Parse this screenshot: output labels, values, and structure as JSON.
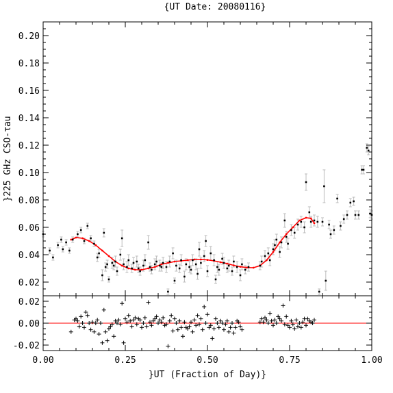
{
  "chart_data": [
    {
      "type": "scatter",
      "title": "{UT Date: 20080116}",
      "xlabel": "",
      "ylabel": "}225 GHz CSO-τau",
      "xlim": [
        0,
        1
      ],
      "ylim": [
        0.01,
        0.21
      ],
      "x_ticks": [
        0,
        0.25,
        0.5,
        0.75,
        1
      ],
      "y_ticks": [
        0.02,
        0.04,
        0.06,
        0.08,
        0.1,
        0.12,
        0.14,
        0.16,
        0.18,
        0.2
      ],
      "y_tick_labels": [
        "0.02",
        "0.04",
        "0.06",
        "0.08",
        "0.10",
        "0.12",
        "0.14",
        "0.16",
        "0.18",
        "0.20"
      ],
      "points": [
        [
          0.0,
          0.055,
          0.002
        ],
        [
          0.02,
          0.043,
          0.002
        ],
        [
          0.03,
          0.038,
          0.002
        ],
        [
          0.045,
          0.047,
          0.002
        ],
        [
          0.055,
          0.051,
          0.002
        ],
        [
          0.06,
          0.044,
          0.002
        ],
        [
          0.07,
          0.049,
          0.002
        ],
        [
          0.08,
          0.043,
          0.002
        ],
        [
          0.09,
          0.051,
          0.002
        ],
        [
          0.105,
          0.055,
          0.002
        ],
        [
          0.115,
          0.058,
          0.002
        ],
        [
          0.125,
          0.05,
          0.002
        ],
        [
          0.135,
          0.061,
          0.002
        ],
        [
          0.145,
          0.052,
          0.002
        ],
        [
          0.155,
          0.048,
          0.002
        ],
        [
          0.165,
          0.038,
          0.003
        ],
        [
          0.17,
          0.041,
          0.003
        ],
        [
          0.18,
          0.025,
          0.004
        ],
        [
          0.185,
          0.056,
          0.003
        ],
        [
          0.19,
          0.031,
          0.003
        ],
        [
          0.195,
          0.033,
          0.003
        ],
        [
          0.2,
          0.022,
          0.002
        ],
        [
          0.21,
          0.034,
          0.004
        ],
        [
          0.215,
          0.032,
          0.003
        ],
        [
          0.22,
          0.035,
          0.004
        ],
        [
          0.225,
          0.028,
          0.003
        ],
        [
          0.235,
          0.04,
          0.004
        ],
        [
          0.24,
          0.052,
          0.006
        ],
        [
          0.245,
          0.033,
          0.004
        ],
        [
          0.255,
          0.031,
          0.004
        ],
        [
          0.26,
          0.036,
          0.004
        ],
        [
          0.27,
          0.03,
          0.003
        ],
        [
          0.275,
          0.034,
          0.004
        ],
        [
          0.285,
          0.035,
          0.004
        ],
        [
          0.29,
          0.03,
          0.003
        ],
        [
          0.295,
          0.028,
          0.003
        ],
        [
          0.305,
          0.032,
          0.004
        ],
        [
          0.31,
          0.036,
          0.004
        ],
        [
          0.32,
          0.049,
          0.005
        ],
        [
          0.325,
          0.031,
          0.003
        ],
        [
          0.33,
          0.029,
          0.003
        ],
        [
          0.34,
          0.033,
          0.004
        ],
        [
          0.345,
          0.035,
          0.004
        ],
        [
          0.355,
          0.032,
          0.004
        ],
        [
          0.36,
          0.031,
          0.003
        ],
        [
          0.365,
          0.034,
          0.004
        ],
        [
          0.375,
          0.031,
          0.004
        ],
        [
          0.38,
          0.013,
          0.002
        ],
        [
          0.385,
          0.035,
          0.004
        ],
        [
          0.395,
          0.041,
          0.004
        ],
        [
          0.4,
          0.021,
          0.002
        ],
        [
          0.405,
          0.032,
          0.004
        ],
        [
          0.415,
          0.03,
          0.003
        ],
        [
          0.42,
          0.036,
          0.004
        ],
        [
          0.43,
          0.024,
          0.004
        ],
        [
          0.435,
          0.033,
          0.004
        ],
        [
          0.445,
          0.031,
          0.004
        ],
        [
          0.45,
          0.029,
          0.003
        ],
        [
          0.455,
          0.036,
          0.004
        ],
        [
          0.465,
          0.033,
          0.004
        ],
        [
          0.47,
          0.026,
          0.004
        ],
        [
          0.475,
          0.044,
          0.005
        ],
        [
          0.48,
          0.034,
          0.004
        ],
        [
          0.49,
          0.039,
          0.004
        ],
        [
          0.495,
          0.05,
          0.004
        ],
        [
          0.5,
          0.028,
          0.004
        ],
        [
          0.51,
          0.041,
          0.005
        ],
        [
          0.52,
          0.036,
          0.004
        ],
        [
          0.525,
          0.022,
          0.003
        ],
        [
          0.53,
          0.031,
          0.004
        ],
        [
          0.535,
          0.029,
          0.004
        ],
        [
          0.545,
          0.037,
          0.004
        ],
        [
          0.55,
          0.034,
          0.004
        ],
        [
          0.56,
          0.03,
          0.003
        ],
        [
          0.565,
          0.032,
          0.004
        ],
        [
          0.575,
          0.028,
          0.003
        ],
        [
          0.58,
          0.035,
          0.004
        ],
        [
          0.59,
          0.031,
          0.004
        ],
        [
          0.6,
          0.025,
          0.004
        ],
        [
          0.605,
          0.033,
          0.004
        ],
        [
          0.615,
          0.029,
          0.003
        ],
        [
          0.625,
          0.031,
          0.003
        ],
        [
          0.66,
          0.032,
          0.003
        ],
        [
          0.665,
          0.035,
          0.004
        ],
        [
          0.675,
          0.039,
          0.004
        ],
        [
          0.685,
          0.041,
          0.004
        ],
        [
          0.69,
          0.036,
          0.004
        ],
        [
          0.7,
          0.044,
          0.004
        ],
        [
          0.705,
          0.047,
          0.004
        ],
        [
          0.71,
          0.051,
          0.004
        ],
        [
          0.72,
          0.042,
          0.004
        ],
        [
          0.725,
          0.049,
          0.004
        ],
        [
          0.735,
          0.065,
          0.005
        ],
        [
          0.74,
          0.053,
          0.004
        ],
        [
          0.745,
          0.048,
          0.004
        ],
        [
          0.755,
          0.058,
          0.004
        ],
        [
          0.765,
          0.056,
          0.004
        ],
        [
          0.775,
          0.062,
          0.004
        ],
        [
          0.785,
          0.064,
          0.004
        ],
        [
          0.795,
          0.06,
          0.004
        ],
        [
          0.8,
          0.093,
          0.006
        ],
        [
          0.81,
          0.071,
          0.004
        ],
        [
          0.815,
          0.064,
          0.004
        ],
        [
          0.825,
          0.065,
          0.004
        ],
        [
          0.835,
          0.064,
          0.004
        ],
        [
          0.84,
          0.013,
          0.002
        ],
        [
          0.85,
          0.064,
          0.003
        ],
        [
          0.855,
          0.09,
          0.012
        ],
        [
          0.86,
          0.021,
          0.007
        ],
        [
          0.87,
          0.062,
          0.003
        ],
        [
          0.875,
          0.055,
          0.003
        ],
        [
          0.885,
          0.058,
          0.003
        ],
        [
          0.895,
          0.081,
          0.003
        ],
        [
          0.905,
          0.061,
          0.003
        ],
        [
          0.915,
          0.066,
          0.003
        ],
        [
          0.925,
          0.069,
          0.003
        ],
        [
          0.935,
          0.078,
          0.003
        ],
        [
          0.945,
          0.079,
          0.003
        ],
        [
          0.95,
          0.069,
          0.003
        ],
        [
          0.96,
          0.069,
          0.003
        ],
        [
          0.97,
          0.102,
          0.003
        ],
        [
          0.975,
          0.102,
          0.003
        ],
        [
          0.985,
          0.118,
          0.003
        ],
        [
          0.99,
          0.116,
          0.003
        ],
        [
          0.995,
          0.07,
          0.003
        ],
        [
          1.0,
          0.069,
          0.003
        ]
      ],
      "fit": {
        "x": [
          0.085,
          0.1,
          0.12,
          0.14,
          0.16,
          0.18,
          0.2,
          0.22,
          0.24,
          0.26,
          0.28,
          0.3,
          0.32,
          0.34,
          0.36,
          0.38,
          0.4,
          0.42,
          0.44,
          0.46,
          0.48,
          0.5,
          0.52,
          0.54,
          0.56,
          0.58,
          0.6,
          0.62,
          0.64,
          0.66,
          0.68,
          0.7,
          0.72,
          0.74,
          0.76,
          0.78,
          0.8,
          0.815,
          0.825
        ],
        "y": [
          0.051,
          0.0525,
          0.052,
          0.05,
          0.047,
          0.043,
          0.039,
          0.035,
          0.032,
          0.03,
          0.029,
          0.029,
          0.03,
          0.031,
          0.033,
          0.034,
          0.035,
          0.0355,
          0.036,
          0.0365,
          0.0365,
          0.0362,
          0.0355,
          0.0345,
          0.0335,
          0.0322,
          0.0312,
          0.0306,
          0.0305,
          0.032,
          0.036,
          0.042,
          0.049,
          0.055,
          0.06,
          0.065,
          0.067,
          0.0665,
          0.063
        ],
        "color": "#ff0000"
      },
      "point_color": "#000000",
      "errorbar_color": "#bbbbbb"
    },
    {
      "type": "scatter",
      "xlabel": "}UT (Fraction of Day)}",
      "ylabel": "",
      "xlim": [
        0,
        1
      ],
      "ylim": [
        -0.025,
        0.025
      ],
      "x_ticks": [
        0,
        0.25,
        0.5,
        0.75,
        1
      ],
      "x_tick_labels": [
        "0.00",
        "0.25",
        "0.50",
        "0.75",
        "1.00"
      ],
      "y_ticks": [
        -0.02,
        0,
        0.02
      ],
      "y_tick_labels": [
        "-0.02",
        "0.00",
        "0.02"
      ],
      "zero_line_color": "#ff0000",
      "residuals": [
        [
          0.085,
          -0.008
        ],
        [
          0.095,
          0.003
        ],
        [
          0.1,
          0.004
        ],
        [
          0.105,
          0.002
        ],
        [
          0.11,
          -0.003
        ],
        [
          0.115,
          0.006
        ],
        [
          0.12,
          0.0
        ],
        [
          0.125,
          -0.004
        ],
        [
          0.13,
          0.01
        ],
        [
          0.135,
          0.007
        ],
        [
          0.14,
          0.0
        ],
        [
          0.145,
          -0.006
        ],
        [
          0.15,
          0.001
        ],
        [
          0.155,
          -0.008
        ],
        [
          0.16,
          0.0
        ],
        [
          0.165,
          0.003
        ],
        [
          0.17,
          -0.01
        ],
        [
          0.175,
          0.0
        ],
        [
          0.18,
          -0.018
        ],
        [
          0.185,
          0.012
        ],
        [
          0.19,
          -0.008
        ],
        [
          0.195,
          -0.016
        ],
        [
          0.2,
          -0.005
        ],
        [
          0.205,
          -0.003
        ],
        [
          0.21,
          -0.001
        ],
        [
          0.215,
          -0.012
        ],
        [
          0.22,
          0.002
        ],
        [
          0.225,
          0.0
        ],
        [
          0.23,
          0.003
        ],
        [
          0.235,
          -0.001
        ],
        [
          0.24,
          0.018
        ],
        [
          0.245,
          -0.018
        ],
        [
          0.25,
          0.004
        ],
        [
          0.255,
          0.001
        ],
        [
          0.26,
          0.007
        ],
        [
          0.265,
          0.002
        ],
        [
          0.27,
          -0.003
        ],
        [
          0.275,
          0.003
        ],
        [
          0.28,
          0.005
        ],
        [
          0.285,
          -0.001
        ],
        [
          0.29,
          0.004
        ],
        [
          0.295,
          0.003
        ],
        [
          0.3,
          -0.004
        ],
        [
          0.305,
          0.0
        ],
        [
          0.31,
          0.005
        ],
        [
          0.315,
          -0.003
        ],
        [
          0.32,
          0.019
        ],
        [
          0.325,
          0.001
        ],
        [
          0.33,
          -0.002
        ],
        [
          0.335,
          0.002
        ],
        [
          0.34,
          0.004
        ],
        [
          0.345,
          0.006
        ],
        [
          0.35,
          0.0
        ],
        [
          0.355,
          0.003
        ],
        [
          0.36,
          0.001
        ],
        [
          0.365,
          0.005
        ],
        [
          0.37,
          -0.002
        ],
        [
          0.375,
          -0.001
        ],
        [
          0.38,
          -0.021
        ],
        [
          0.385,
          0.002
        ],
        [
          0.39,
          0.007
        ],
        [
          0.395,
          -0.007
        ],
        [
          0.4,
          0.004
        ],
        [
          0.405,
          0.0
        ],
        [
          0.41,
          -0.006
        ],
        [
          0.415,
          0.002
        ],
        [
          0.42,
          -0.004
        ],
        [
          0.425,
          -0.012
        ],
        [
          0.43,
          0.001
        ],
        [
          0.435,
          -0.004
        ],
        [
          0.44,
          -0.005
        ],
        [
          0.445,
          -0.003
        ],
        [
          0.45,
          0.001
        ],
        [
          0.455,
          -0.008
        ],
        [
          0.46,
          0.003
        ],
        [
          0.465,
          -0.002
        ],
        [
          0.47,
          0.007
        ],
        [
          0.475,
          -0.001
        ],
        [
          0.48,
          0.004
        ],
        [
          0.485,
          -0.006
        ],
        [
          0.49,
          0.015
        ],
        [
          0.495,
          0.0
        ],
        [
          0.5,
          0.008
        ],
        [
          0.505,
          -0.004
        ],
        [
          0.51,
          -0.002
        ],
        [
          0.515,
          -0.014
        ],
        [
          0.52,
          -0.005
        ],
        [
          0.525,
          0.004
        ],
        [
          0.53,
          0.0
        ],
        [
          0.535,
          -0.004
        ],
        [
          0.54,
          0.002
        ],
        [
          0.545,
          0.0
        ],
        [
          0.55,
          -0.006
        ],
        [
          0.555,
          -0.001
        ],
        [
          0.56,
          0.002
        ],
        [
          0.565,
          -0.008
        ],
        [
          0.57,
          -0.004
        ],
        [
          0.575,
          0.0
        ],
        [
          0.58,
          -0.009
        ],
        [
          0.585,
          -0.004
        ],
        [
          0.59,
          0.002
        ],
        [
          0.595,
          0.001
        ],
        [
          0.6,
          -0.003
        ],
        [
          0.605,
          -0.006
        ],
        [
          0.66,
          0.001
        ],
        [
          0.665,
          0.004
        ],
        [
          0.67,
          0.001
        ],
        [
          0.675,
          0.005
        ],
        [
          0.68,
          0.003
        ],
        [
          0.685,
          0.0
        ],
        [
          0.69,
          0.009
        ],
        [
          0.695,
          0.002
        ],
        [
          0.7,
          -0.002
        ],
        [
          0.705,
          0.003
        ],
        [
          0.71,
          0.0
        ],
        [
          0.715,
          0.006
        ],
        [
          0.72,
          0.004
        ],
        [
          0.725,
          0.002
        ],
        [
          0.73,
          0.016
        ],
        [
          0.735,
          -0.001
        ],
        [
          0.74,
          0.006
        ],
        [
          0.745,
          -0.002
        ],
        [
          0.75,
          -0.004
        ],
        [
          0.755,
          0.002
        ],
        [
          0.76,
          -0.001
        ],
        [
          0.765,
          -0.005
        ],
        [
          0.77,
          0.003
        ],
        [
          0.775,
          -0.003
        ],
        [
          0.78,
          0.0
        ],
        [
          0.785,
          -0.004
        ],
        [
          0.79,
          0.001
        ],
        [
          0.795,
          0.004
        ],
        [
          0.8,
          -0.002
        ],
        [
          0.805,
          0.004
        ],
        [
          0.81,
          0.002
        ],
        [
          0.815,
          0.001
        ],
        [
          0.82,
          0.0
        ],
        [
          0.825,
          0.003
        ]
      ]
    }
  ]
}
